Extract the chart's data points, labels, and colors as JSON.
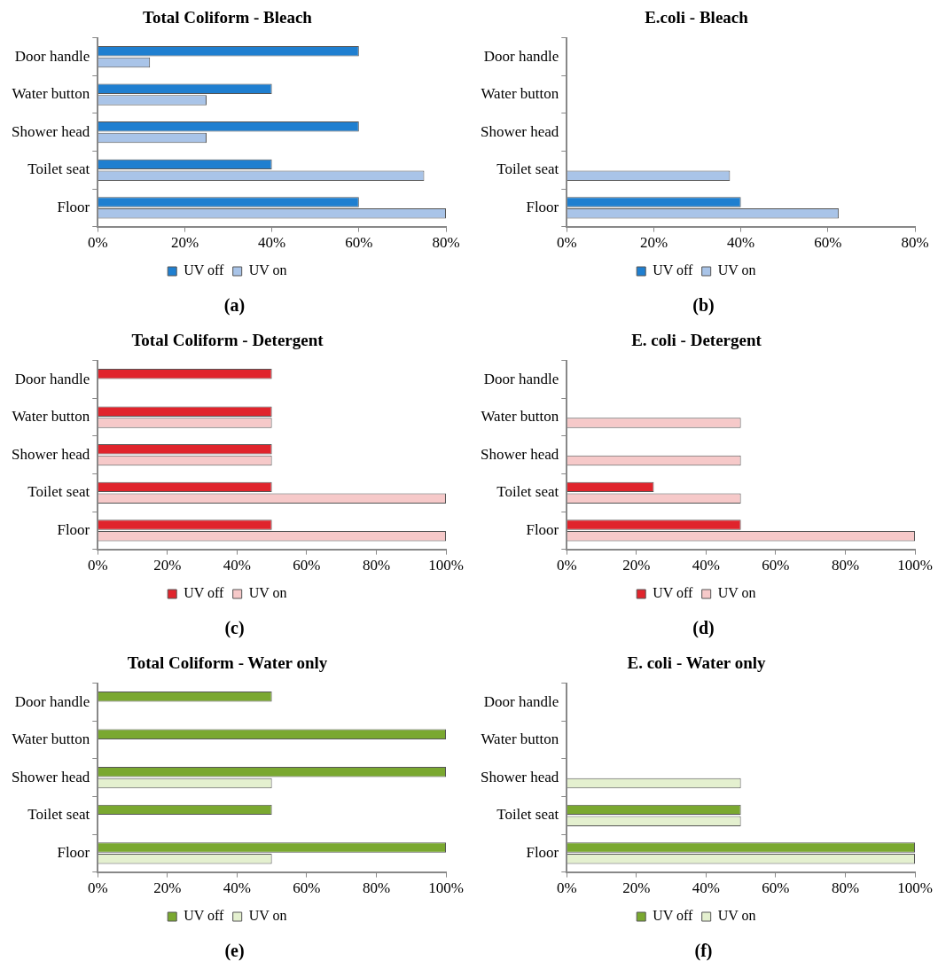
{
  "chart_data": [
    {
      "type": "bar",
      "orientation": "horizontal",
      "title": "Total Coliform - Bleach",
      "categories": [
        "Door handle",
        "Water button",
        "Shower head",
        "Toilet seat",
        "Floor"
      ],
      "series": [
        {
          "name": "UV off",
          "color": "#1f7fd0",
          "values": [
            60,
            40,
            60,
            40,
            60
          ]
        },
        {
          "name": "UV on",
          "color": "#a9c4e8",
          "values": [
            12,
            25,
            25,
            75,
            80
          ]
        }
      ],
      "xlim": [
        0,
        80
      ],
      "xticks": [
        {
          "value": 0,
          "label": "0%"
        },
        {
          "value": 20,
          "label": "20%"
        },
        {
          "value": 40,
          "label": "40%"
        },
        {
          "value": 60,
          "label": "60%"
        },
        {
          "value": 80,
          "label": "80%"
        }
      ],
      "grid": false,
      "legend": "bottom",
      "annotations": [
        "(a)"
      ]
    },
    {
      "type": "bar",
      "orientation": "horizontal",
      "title": "E.coli - Bleach",
      "categories": [
        "Door handle",
        "Water button",
        "Shower head",
        "Toilet seat",
        "Floor"
      ],
      "series": [
        {
          "name": "UV off",
          "color": "#1f7fd0",
          "values": [
            0,
            0,
            0,
            0,
            40
          ]
        },
        {
          "name": "UV on",
          "color": "#a9c4e8",
          "values": [
            0,
            0,
            0,
            37.5,
            62.5
          ]
        }
      ],
      "xlim": [
        0,
        80
      ],
      "xticks": [
        {
          "value": 0,
          "label": "0%"
        },
        {
          "value": 20,
          "label": "20%"
        },
        {
          "value": 40,
          "label": "40%"
        },
        {
          "value": 60,
          "label": "60%"
        },
        {
          "value": 80,
          "label": "80%"
        }
      ],
      "grid": false,
      "legend": "bottom",
      "annotations": [
        "(b)"
      ]
    },
    {
      "type": "bar",
      "orientation": "horizontal",
      "title": "Total Coliform - Detergent",
      "categories": [
        "Door handle",
        "Water button",
        "Shower head",
        "Toilet seat",
        "Floor"
      ],
      "series": [
        {
          "name": "UV off",
          "color": "#e0242c",
          "values": [
            50,
            50,
            50,
            50,
            50
          ]
        },
        {
          "name": "UV on",
          "color": "#f6c9c9",
          "values": [
            0,
            50,
            50,
            100,
            100
          ]
        }
      ],
      "xlim": [
        0,
        100
      ],
      "xticks": [
        {
          "value": 0,
          "label": "0%"
        },
        {
          "value": 20,
          "label": "20%"
        },
        {
          "value": 40,
          "label": "40%"
        },
        {
          "value": 60,
          "label": "60%"
        },
        {
          "value": 80,
          "label": "80%"
        },
        {
          "value": 100,
          "label": "100%"
        }
      ],
      "grid": false,
      "legend": "bottom",
      "annotations": [
        "(c)"
      ]
    },
    {
      "type": "bar",
      "orientation": "horizontal",
      "title": "E. coli - Detergent",
      "categories": [
        "Door handle",
        "Water button",
        "Shower head",
        "Toilet seat",
        "Floor"
      ],
      "series": [
        {
          "name": "UV off",
          "color": "#e0242c",
          "values": [
            0,
            0,
            0,
            25,
            50
          ]
        },
        {
          "name": "UV on",
          "color": "#f6c9c9",
          "values": [
            0,
            50,
            50,
            50,
            100
          ]
        }
      ],
      "xlim": [
        0,
        100
      ],
      "xticks": [
        {
          "value": 0,
          "label": "0%"
        },
        {
          "value": 20,
          "label": "20%"
        },
        {
          "value": 40,
          "label": "40%"
        },
        {
          "value": 60,
          "label": "60%"
        },
        {
          "value": 80,
          "label": "80%"
        },
        {
          "value": 100,
          "label": "100%"
        }
      ],
      "grid": false,
      "legend": "bottom",
      "annotations": [
        "(d)"
      ]
    },
    {
      "type": "bar",
      "orientation": "horizontal",
      "title": "Total Coliform - Water only",
      "categories": [
        "Door handle",
        "Water button",
        "Shower head",
        "Toilet seat",
        "Floor"
      ],
      "series": [
        {
          "name": "UV off",
          "color": "#7aa830",
          "values": [
            50,
            100,
            100,
            50,
            100
          ]
        },
        {
          "name": "UV on",
          "color": "#e4f0cf",
          "values": [
            0,
            0,
            50,
            0,
            50
          ]
        }
      ],
      "xlim": [
        0,
        100
      ],
      "xticks": [
        {
          "value": 0,
          "label": "0%"
        },
        {
          "value": 20,
          "label": "20%"
        },
        {
          "value": 40,
          "label": "40%"
        },
        {
          "value": 60,
          "label": "60%"
        },
        {
          "value": 80,
          "label": "80%"
        },
        {
          "value": 100,
          "label": "100%"
        }
      ],
      "grid": false,
      "legend": "bottom",
      "annotations": [
        "(e)"
      ]
    },
    {
      "type": "bar",
      "orientation": "horizontal",
      "title": "E. coli - Water only",
      "categories": [
        "Door handle",
        "Water button",
        "Shower head",
        "Toilet seat",
        "Floor"
      ],
      "series": [
        {
          "name": "UV off",
          "color": "#7aa830",
          "values": [
            0,
            0,
            0,
            50,
            100
          ]
        },
        {
          "name": "UV on",
          "color": "#e4f0cf",
          "values": [
            0,
            0,
            50,
            50,
            100
          ]
        }
      ],
      "xlim": [
        0,
        100
      ],
      "xticks": [
        {
          "value": 0,
          "label": "0%"
        },
        {
          "value": 20,
          "label": "20%"
        },
        {
          "value": 40,
          "label": "40%"
        },
        {
          "value": 60,
          "label": "60%"
        },
        {
          "value": 80,
          "label": "80%"
        },
        {
          "value": 100,
          "label": "100%"
        }
      ],
      "grid": false,
      "legend": "bottom",
      "annotations": [
        "(f)"
      ]
    }
  ]
}
